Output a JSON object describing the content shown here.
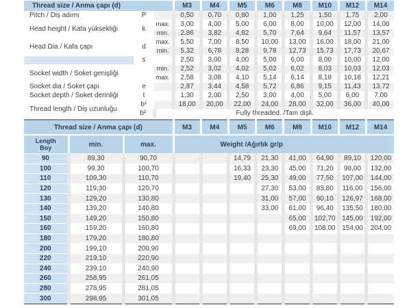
{
  "colors": {
    "header_blue": "#b9d5ec",
    "length_cell_blue": "#cfe1f2",
    "s_row_label_blue": "#d6e4f2",
    "row_tint": "#f0f0f0",
    "column_gap_gray": "#e6e6e6",
    "rule_gray": "#8f8f8f",
    "header_text": "#2a3f55",
    "body_text": "#3d3d3d"
  },
  "sizes": [
    "M3",
    "M4",
    "M5",
    "M6",
    "M8",
    "M10",
    "M12",
    "M14"
  ],
  "dim_table": {
    "title": "Thread size / Anma çapı (d)",
    "rows": [
      {
        "label": "Pitch / Diş adımı",
        "lspan": 1,
        "sym": "P",
        "sspan": 1,
        "sub": "",
        "vals": [
          "0,50",
          "0,70",
          "0,80",
          "1,00",
          "1,25",
          "1,50",
          "1,75",
          "2,00"
        ]
      },
      {
        "label": "Head height / Kafa yüksekliği",
        "lspan": 2,
        "sym": "k",
        "sspan": 2,
        "sub": "max.",
        "vals": [
          "3,00",
          "4,00",
          "5,00",
          "6,00",
          "8,00",
          "10,00",
          "12,00",
          "14,00"
        ]
      },
      {
        "sub": "min.",
        "vals": [
          "2,86",
          "3,82",
          "4,82",
          "5,70",
          "7,64",
          "9,64",
          "11,57",
          "13,57"
        ]
      },
      {
        "label": "Head Dia / Kafa çapı",
        "lspan": 2,
        "sym": "d",
        "sspan": 2,
        "sub": "max.",
        "vals": [
          "5,50",
          "7,00",
          "8,50",
          "10,00",
          "13,00",
          "16,00",
          "18,00",
          "21,00"
        ]
      },
      {
        "sub": "min.",
        "vals": [
          "5,32",
          "6,78",
          "8,28",
          "9,78",
          "12,73",
          "15,73",
          "17,73",
          "20,67"
        ]
      },
      {
        "label": "",
        "lblue": true,
        "lspan": 1,
        "sym": "s",
        "sspan": 1,
        "sub": "",
        "vals": [
          "2,50",
          "3,00",
          "4,00",
          "5,00",
          "6,00",
          "8,00",
          "10,00",
          "12,00"
        ]
      },
      {
        "label": "Socket width / Soket genişliği",
        "lspan": 2,
        "sym": "",
        "sspan": 2,
        "sub": "min.",
        "vals": [
          "2,52",
          "3,02",
          "4,02",
          "5,02",
          "6,02",
          "8,03",
          "10,03",
          "12,03"
        ]
      },
      {
        "sub": "max.",
        "vals": [
          "2,58",
          "3,08",
          "4,10",
          "5,14",
          "6,14",
          "8,18",
          "10,18",
          "12,21"
        ]
      },
      {
        "label": "Socket dia / Soket çapı",
        "lspan": 1,
        "sym": "e",
        "sspan": 1,
        "sub": "",
        "vals": [
          "2,87",
          "3,44",
          "4,58",
          "5,72",
          "6,86",
          "9,15",
          "11,43",
          "13,72"
        ]
      },
      {
        "label": "Socket depth / Soket derinliği",
        "lspan": 1,
        "sym": "t",
        "sspan": 1,
        "sub": "",
        "vals": [
          "1,30",
          "2,00",
          "2,50",
          "3,00",
          "4,00",
          "5,00",
          "6,00",
          "7,00"
        ]
      },
      {
        "label": "Thread length / Diş uzunluğu",
        "lspan": 2,
        "sym": "b¹",
        "sspan": 1,
        "sub": "",
        "vals": [
          "18,00",
          "20,00",
          "22,00",
          "24,00",
          "28,00",
          "32,00",
          "36,00",
          "40,00"
        ]
      },
      {
        "sym": "b²",
        "sspan": 1,
        "span_text": "Fully threaded. /Tam dişli."
      }
    ]
  },
  "weight_table": {
    "title": "Thread size / Anma çapı (d)",
    "length_label": "Length",
    "length_label2": "Boy",
    "min_label": "min.",
    "max_label": "max.",
    "weight_label": "Weight /Ağırlık gr/p",
    "rows": [
      {
        "len": "90",
        "min": "89,30",
        "max": "90,70",
        "w": [
          "",
          "",
          "14,79",
          "21,30",
          "41,00",
          "64,90",
          "89,10",
          "120,00"
        ]
      },
      {
        "len": "100",
        "min": "99,30",
        "max": "100,70",
        "w": [
          "",
          "",
          "16,33",
          "23,30",
          "45,00",
          "71,20",
          "98,00",
          "132,00"
        ]
      },
      {
        "len": "110",
        "min": "109,30",
        "max": "110,70",
        "w": [
          "",
          "",
          "19,40",
          "25,30",
          "49,00",
          "77,50",
          "107,00",
          "144,00"
        ]
      },
      {
        "len": "120",
        "min": "119,30",
        "max": "120,70",
        "w": [
          "",
          "",
          "",
          "27,30",
          "53,00",
          "83,80",
          "116,00",
          "156,00"
        ]
      },
      {
        "len": "130",
        "min": "129,20",
        "max": "130,80",
        "w": [
          "",
          "",
          "",
          "31,00",
          "57,00",
          "90,10",
          "126,97",
          "168,00"
        ]
      },
      {
        "len": "140",
        "min": "139,20",
        "max": "140,80",
        "w": [
          "",
          "",
          "",
          "33,00",
          "61,00",
          "96,40",
          "135,50",
          "180,00"
        ]
      },
      {
        "len": "150",
        "min": "149,20",
        "max": "150,80",
        "w": [
          "",
          "",
          "",
          "",
          "65,00",
          "102,70",
          "145,00",
          "192,00"
        ]
      },
      {
        "len": "160",
        "min": "159,20",
        "max": "160,80",
        "w": [
          "",
          "",
          "",
          "",
          "69,00",
          "108,00",
          "154,00",
          "204,00"
        ]
      },
      {
        "len": "180",
        "min": "179,20",
        "max": "180,80",
        "w": [
          "",
          "",
          "",
          "",
          "",
          "",
          "",
          ""
        ]
      },
      {
        "len": "200",
        "min": "199,10",
        "max": "200,90",
        "w": [
          "",
          "",
          "",
          "",
          "",
          "",
          "",
          ""
        ]
      },
      {
        "len": "220",
        "min": "219,10",
        "max": "220,90",
        "w": [
          "",
          "",
          "",
          "",
          "",
          "",
          "",
          ""
        ]
      },
      {
        "len": "240",
        "min": "239,10",
        "max": "240,90",
        "w": [
          "",
          "",
          "",
          "",
          "",
          "",
          "",
          ""
        ]
      },
      {
        "len": "260",
        "min": "258,95",
        "max": "261,05",
        "w": [
          "",
          "",
          "",
          "",
          "",
          "",
          "",
          ""
        ]
      },
      {
        "len": "280",
        "min": "278,95",
        "max": "281,05",
        "w": [
          "",
          "",
          "",
          "",
          "",
          "",
          "",
          ""
        ]
      },
      {
        "len": "300",
        "min": "298,95",
        "max": "301,05",
        "w": [
          "",
          "",
          "",
          "",
          "",
          "",
          "",
          ""
        ]
      }
    ]
  }
}
